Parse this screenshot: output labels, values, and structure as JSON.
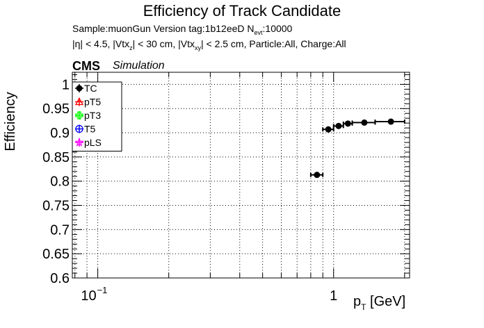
{
  "header": {
    "title": "Efficiency of Track Candidate",
    "line1_prefix": "Sample:muonGun   Version tag:1b12eeD  N",
    "line1_sub": "evt",
    "line1_suffix": ":10000",
    "line2_a": "|η| < 4.5, |Vtx",
    "line2_sub1": "z",
    "line2_b": "| < 30 cm, |Vtx",
    "line2_sub2": "xy",
    "line2_c": "| < 2.5 cm, Particle:All, Charge:All",
    "cms": "CMS",
    "simulation": "Simulation"
  },
  "chart_data": {
    "type": "scatter",
    "title": "Efficiency of Track Candidate",
    "xlabel": "p_T [GeV]",
    "xlabel_main": "p",
    "xlabel_sub": "T",
    "xlabel_unit": " [GeV]",
    "ylabel": "Efficiency",
    "xscale": "log",
    "xlim": [
      0.078,
      2.1
    ],
    "ylim": [
      0.6,
      1.025
    ],
    "yticks": [
      0.6,
      0.65,
      0.7,
      0.75,
      0.8,
      0.85,
      0.9,
      0.95,
      1.0
    ],
    "ytick_labels": [
      "0.6",
      "0.65",
      "0.7",
      "0.75",
      "0.8",
      "0.85",
      "0.9",
      "0.95",
      "1"
    ],
    "xtick_labels": [
      {
        "value": 0.1,
        "base": "10",
        "exp": "−1"
      },
      {
        "value": 1,
        "base": "1",
        "exp": ""
      }
    ],
    "grid": true,
    "legend_position": "top-left",
    "series": [
      {
        "name": "TC",
        "color": "#000000",
        "marker": "filled-circle",
        "points": [
          {
            "x": 0.85,
            "y": 0.813,
            "xlo": 0.8,
            "xhi": 0.9
          },
          {
            "x": 0.95,
            "y": 0.907,
            "xlo": 0.9,
            "xhi": 1.0
          },
          {
            "x": 1.05,
            "y": 0.914,
            "xlo": 1.0,
            "xhi": 1.1
          },
          {
            "x": 1.15,
            "y": 0.919,
            "xlo": 1.1,
            "xhi": 1.2
          },
          {
            "x": 1.35,
            "y": 0.921,
            "xlo": 1.2,
            "xhi": 1.5
          },
          {
            "x": 1.75,
            "y": 0.923,
            "xlo": 1.5,
            "xhi": 2.0
          }
        ]
      },
      {
        "name": "pT5",
        "color": "#ff0000",
        "marker": "open-triangle",
        "points": []
      },
      {
        "name": "pT3",
        "color": "#00ff00",
        "marker": "open-cross",
        "points": []
      },
      {
        "name": "T5",
        "color": "#0000ff",
        "marker": "open-circle",
        "points": []
      },
      {
        "name": "pLS",
        "color": "#ff00ff",
        "marker": "open-star",
        "points": []
      }
    ]
  }
}
